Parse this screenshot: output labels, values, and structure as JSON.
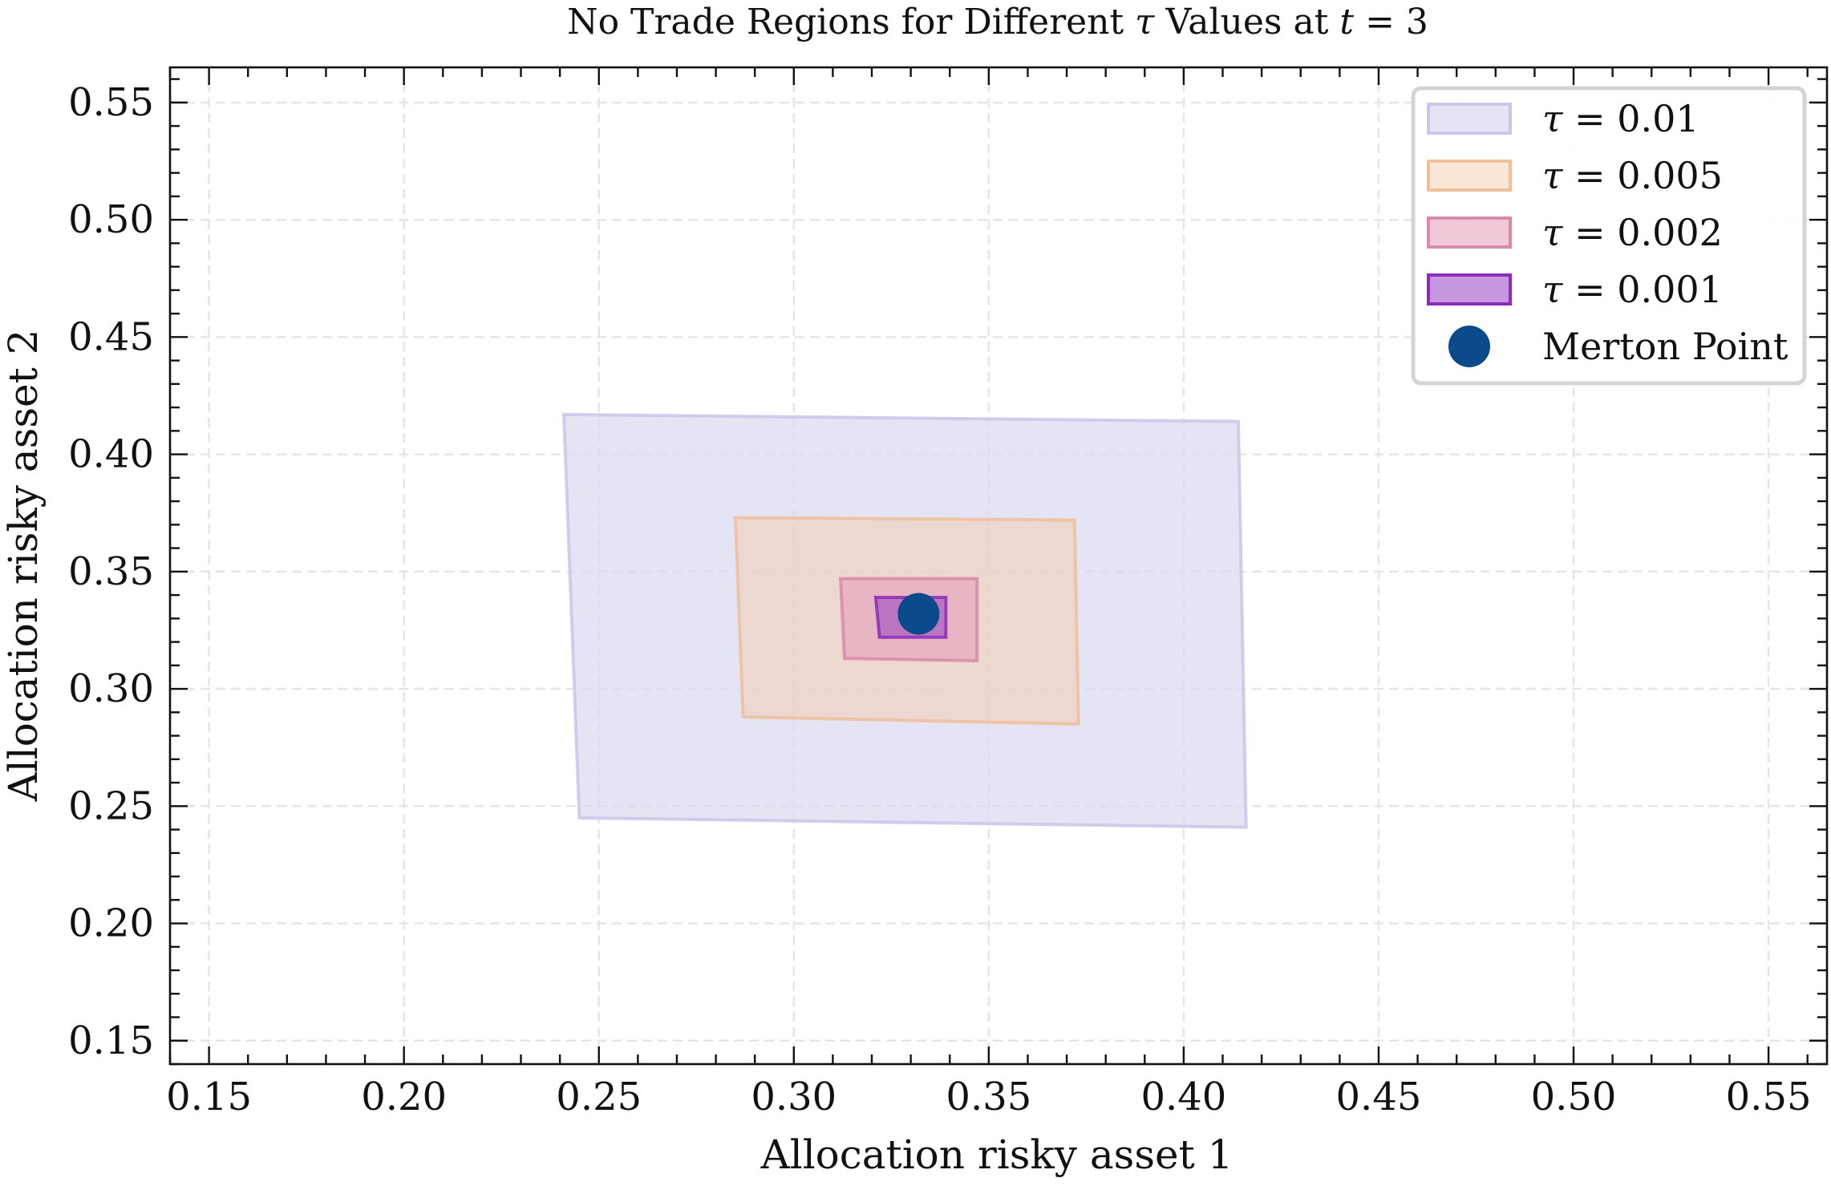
{
  "chart_data": {
    "type": "area",
    "title_parts": {
      "pre": "No Trade Regions for Different ",
      "tau": "τ",
      "mid": " Values at ",
      "t": "t",
      "post": " = 3"
    },
    "xlabel": "Allocation risky asset 1",
    "ylabel": "Allocation risky asset 2",
    "xlim": [
      0.14,
      0.565
    ],
    "ylim": [
      0.14,
      0.565
    ],
    "xticks": [
      "0.15",
      "0.20",
      "0.25",
      "0.30",
      "0.35",
      "0.40",
      "0.45",
      "0.50",
      "0.55"
    ],
    "yticks": [
      "0.15",
      "0.20",
      "0.25",
      "0.30",
      "0.35",
      "0.40",
      "0.45",
      "0.50",
      "0.55"
    ],
    "grid": true,
    "legend_position": "top-right",
    "series": [
      {
        "name": "= 0.01",
        "fill": "#d9d8f0",
        "fill_opacity": 0.7,
        "stroke": "#c9c6ea",
        "polygon": [
          [
            0.241,
            0.417
          ],
          [
            0.414,
            0.414
          ],
          [
            0.416,
            0.241
          ],
          [
            0.245,
            0.245
          ]
        ]
      },
      {
        "name": "= 0.005",
        "fill": "#f7c9a6",
        "fill_opacity": 0.45,
        "stroke": "#f0c09a",
        "polygon": [
          [
            0.285,
            0.373
          ],
          [
            0.372,
            0.372
          ],
          [
            0.373,
            0.285
          ],
          [
            0.287,
            0.288
          ]
        ]
      },
      {
        "name": "= 0.002",
        "fill": "#e39ab6",
        "fill_opacity": 0.55,
        "stroke": "#d98aa8",
        "polygon": [
          [
            0.312,
            0.347
          ],
          [
            0.347,
            0.347
          ],
          [
            0.347,
            0.312
          ],
          [
            0.313,
            0.313
          ]
        ]
      },
      {
        "name": "= 0.001",
        "fill": "#9b3fc2",
        "fill_opacity": 0.55,
        "stroke": "#8a2db8",
        "polygon": [
          [
            0.321,
            0.339
          ],
          [
            0.339,
            0.339
          ],
          [
            0.339,
            0.322
          ],
          [
            0.322,
            0.322
          ]
        ]
      }
    ],
    "merton_point": {
      "name": "Merton Point",
      "x": 0.332,
      "y": 0.332,
      "color": "#0b4b8c"
    },
    "legend_tau_symbol": "τ"
  }
}
